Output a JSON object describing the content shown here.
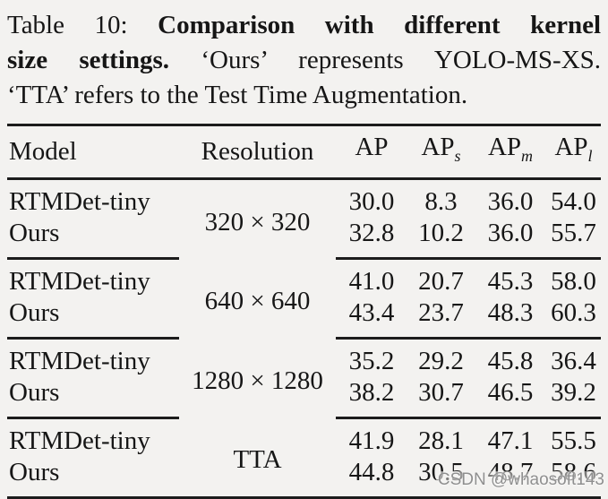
{
  "caption": {
    "label": "Table 10:",
    "title_bold_line1": "Comparison with different kernel",
    "title_bold_line2": "size settings.",
    "line2_normal": "‘Ours’ represents YOLO-MS-XS.",
    "line3_normal": "‘TTA’ refers to the Test Time Augmentation."
  },
  "table": {
    "columns": [
      {
        "label": "Model",
        "sub": ""
      },
      {
        "label": "Resolution",
        "sub": ""
      },
      {
        "label": "AP",
        "sub": ""
      },
      {
        "label": "AP",
        "sub": "s"
      },
      {
        "label": "AP",
        "sub": "m"
      },
      {
        "label": "AP",
        "sub": "l"
      }
    ],
    "groups": [
      {
        "resolution": "320 × 320",
        "rows": [
          {
            "model": "RTMDet-tiny",
            "ap": "30.0",
            "ap_s": "8.3",
            "ap_m": "36.0",
            "ap_l": "54.0"
          },
          {
            "model": "Ours",
            "ap": "32.8",
            "ap_s": "10.2",
            "ap_m": "36.0",
            "ap_l": "55.7"
          }
        ]
      },
      {
        "resolution": "640 × 640",
        "rows": [
          {
            "model": "RTMDet-tiny",
            "ap": "41.0",
            "ap_s": "20.7",
            "ap_m": "45.3",
            "ap_l": "58.0"
          },
          {
            "model": "Ours",
            "ap": "43.4",
            "ap_s": "23.7",
            "ap_m": "48.3",
            "ap_l": "60.3"
          }
        ]
      },
      {
        "resolution": "1280 × 1280",
        "rows": [
          {
            "model": "RTMDet-tiny",
            "ap": "35.2",
            "ap_s": "29.2",
            "ap_m": "45.8",
            "ap_l": "36.4"
          },
          {
            "model": "Ours",
            "ap": "38.2",
            "ap_s": "30.7",
            "ap_m": "46.5",
            "ap_l": "39.2"
          }
        ]
      },
      {
        "resolution": "TTA",
        "rows": [
          {
            "model": "RTMDet-tiny",
            "ap": "41.9",
            "ap_s": "28.1",
            "ap_m": "47.1",
            "ap_l": "55.5"
          },
          {
            "model": "Ours",
            "ap": "44.8",
            "ap_s": "30.5",
            "ap_m": "48.7",
            "ap_l": "58.6"
          }
        ]
      }
    ]
  },
  "watermark": {
    "text": "CSDN @whaosoft143"
  },
  "colors": {
    "background": "#f3f2f0",
    "text": "#161616",
    "rule": "#1c1c1c",
    "watermark": "#8f8f8f"
  }
}
